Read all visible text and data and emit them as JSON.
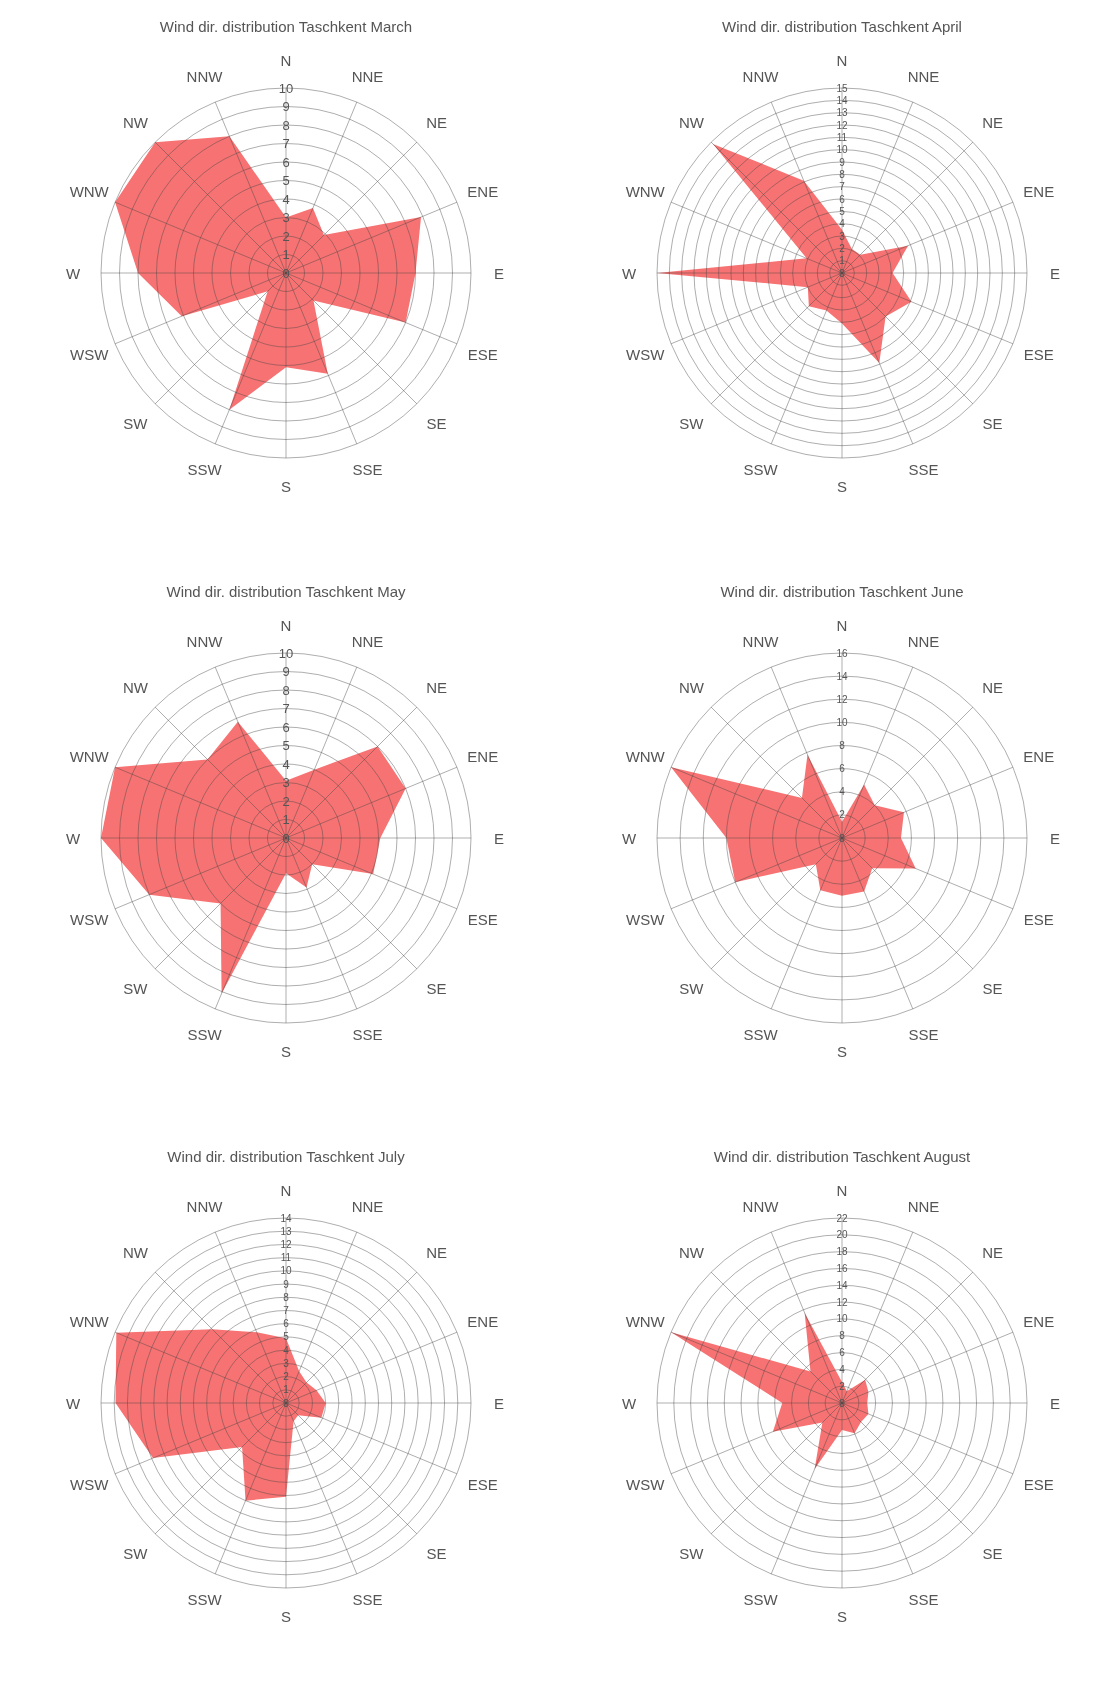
{
  "chart_data": [
    {
      "type": "radar",
      "title": "Wind dir. distribution Taschkent March",
      "categories": [
        "N",
        "NNE",
        "NE",
        "ENE",
        "E",
        "ESE",
        "SE",
        "SSE",
        "S",
        "SSW",
        "SW",
        "WSW",
        "W",
        "WNW",
        "NW",
        "NNW"
      ],
      "series": [
        {
          "color": "#f77272",
          "values": [
            3.0,
            3.8,
            2.9,
            7.9,
            7.0,
            7.0,
            2.1,
            5.9,
            5.1,
            8.0,
            1.4,
            6.1,
            8.0,
            10.0,
            10.0,
            8.0
          ]
        }
      ],
      "ylim": [
        0,
        10
      ],
      "yticks": [
        0,
        1,
        2,
        3,
        4,
        5,
        6,
        7,
        8,
        9,
        10
      ],
      "grid": true
    },
    {
      "type": "radar",
      "title": "Wind dir. distribution Taschkent April",
      "categories": [
        "N",
        "NNE",
        "NE",
        "ENE",
        "E",
        "ESE",
        "SE",
        "SSE",
        "S",
        "SSW",
        "SW",
        "WSW",
        "W",
        "WNW",
        "NW",
        "NNW"
      ],
      "series": [
        {
          "color": "#f77272",
          "values": [
            3.5,
            2.1,
            2.1,
            5.8,
            4.1,
            6.1,
            5.0,
            7.9,
            4.1,
            3.3,
            3.8,
            3.0,
            15.0,
            3.1,
            14.8,
            8.1
          ]
        }
      ],
      "ylim": [
        0,
        15
      ],
      "yticks": [
        0,
        1,
        2,
        3,
        4,
        5,
        6,
        7,
        8,
        9,
        10,
        11,
        12,
        13,
        14,
        15
      ],
      "grid": true
    },
    {
      "type": "radar",
      "title": "Wind dir. distribution Taschkent May",
      "categories": [
        "N",
        "NNE",
        "NE",
        "ENE",
        "E",
        "ESE",
        "SE",
        "SSE",
        "S",
        "SSW",
        "SW",
        "WSW",
        "W",
        "WNW",
        "NW",
        "NNW"
      ],
      "series": [
        {
          "color": "#f77272",
          "values": [
            3.1,
            4.0,
            7.0,
            7.0,
            5.1,
            5.1,
            2.0,
            2.9,
            1.9,
            9.1,
            5.0,
            8.0,
            10.0,
            10.0,
            6.0,
            6.8
          ]
        }
      ],
      "ylim": [
        0,
        10
      ],
      "yticks": [
        0,
        1,
        2,
        3,
        4,
        5,
        6,
        7,
        8,
        9,
        10
      ],
      "grid": true
    },
    {
      "type": "radar",
      "title": "Wind dir. distribution Taschkent June",
      "categories": [
        "N",
        "NNE",
        "NE",
        "ENE",
        "E",
        "ESE",
        "SE",
        "SSE",
        "S",
        "SSW",
        "SW",
        "WSW",
        "W",
        "WNW",
        "NW",
        "NNW"
      ],
      "series": [
        {
          "color": "#f77272",
          "values": [
            1.4,
            5.0,
            4.0,
            5.8,
            5.1,
            6.9,
            3.7,
            5.0,
            5.0,
            4.9,
            3.2,
            10.0,
            10.0,
            16.0,
            4.9,
            7.8
          ]
        }
      ],
      "ylim": [
        0,
        16
      ],
      "yticks": [
        0,
        2,
        4,
        6,
        8,
        10,
        12,
        14,
        16
      ],
      "grid": true
    },
    {
      "type": "radar",
      "title": "Wind dir. distribution Taschkent July",
      "categories": [
        "N",
        "NNE",
        "NE",
        "ENE",
        "E",
        "ESE",
        "SE",
        "SSE",
        "S",
        "SSW",
        "SW",
        "WSW",
        "W",
        "WNW",
        "NW",
        "NNW"
      ],
      "series": [
        {
          "color": "#f77272",
          "values": [
            4.9,
            2.6,
            2.2,
            2.5,
            3.0,
            2.9,
            1.3,
            1.5,
            7.1,
            8.0,
            4.7,
            10.9,
            12.9,
            13.9,
            7.9,
            5.8
          ]
        }
      ],
      "ylim": [
        0,
        14
      ],
      "yticks": [
        0,
        1,
        2,
        3,
        4,
        5,
        6,
        7,
        8,
        9,
        10,
        11,
        12,
        13,
        14
      ],
      "grid": true
    },
    {
      "type": "radar",
      "title": "Wind dir. distribution Taschkent August",
      "categories": [
        "N",
        "NNE",
        "NE",
        "ENE",
        "E",
        "ESE",
        "SE",
        "SSE",
        "S",
        "SSW",
        "SW",
        "WSW",
        "W",
        "WNW",
        "NW",
        "NNW"
      ],
      "series": [
        {
          "color": "#f77272",
          "values": [
            2.5,
            1.5,
            3.9,
            3.4,
            3.0,
            3.4,
            3.2,
            3.9,
            3.2,
            8.5,
            3.3,
            8.9,
            7.1,
            22,
            5.3,
            11.6
          ]
        }
      ],
      "ylim": [
        0,
        22
      ],
      "yticks": [
        0,
        2,
        4,
        6,
        8,
        10,
        12,
        14,
        16,
        18,
        20,
        22
      ],
      "grid": true
    }
  ]
}
